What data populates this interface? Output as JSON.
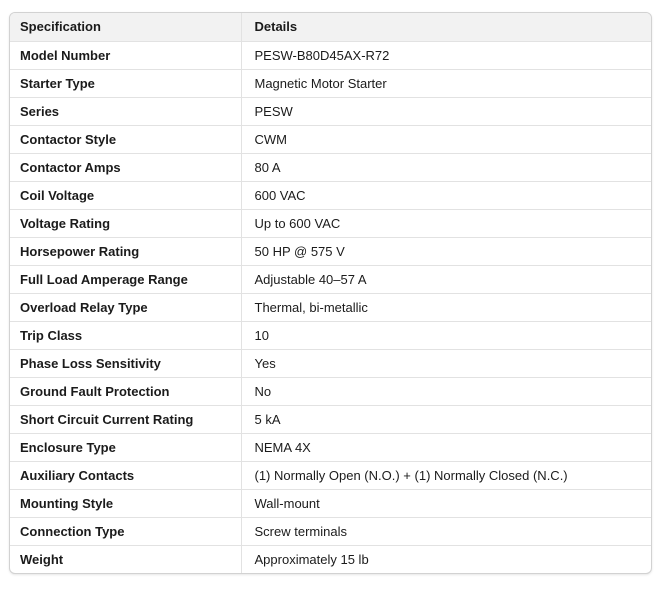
{
  "colors": {
    "header_background": "#f2f2f2",
    "outer_border": "#d2d2d2",
    "inner_border": "#e2e2e2",
    "text": "#1b1b1b",
    "row_background": "#ffffff"
  },
  "table": {
    "headers": [
      "Specification",
      "Details"
    ],
    "rows": [
      {
        "spec": "Model Number",
        "details": "PESW-B80D45AX-R72"
      },
      {
        "spec": "Starter Type",
        "details": "Magnetic Motor Starter"
      },
      {
        "spec": "Series",
        "details": "PESW"
      },
      {
        "spec": "Contactor Style",
        "details": "CWM"
      },
      {
        "spec": "Contactor Amps",
        "details": "80 A"
      },
      {
        "spec": "Coil Voltage",
        "details": "600 VAC"
      },
      {
        "spec": "Voltage Rating",
        "details": "Up to 600 VAC"
      },
      {
        "spec": "Horsepower Rating",
        "details": "50 HP @ 575 V"
      },
      {
        "spec": "Full Load Amperage Range",
        "details": "Adjustable 40–57 A"
      },
      {
        "spec": "Overload Relay Type",
        "details": "Thermal, bi-metallic"
      },
      {
        "spec": "Trip Class",
        "details": "10"
      },
      {
        "spec": "Phase Loss Sensitivity",
        "details": "Yes"
      },
      {
        "spec": "Ground Fault Protection",
        "details": "No"
      },
      {
        "spec": "Short Circuit Current Rating",
        "details": "5 kA"
      },
      {
        "spec": "Enclosure Type",
        "details": "NEMA 4X"
      },
      {
        "spec": "Auxiliary Contacts",
        "details": "(1) Normally Open (N.O.) + (1) Normally Closed (N.C.)"
      },
      {
        "spec": "Mounting Style",
        "details": "Wall-mount"
      },
      {
        "spec": "Connection Type",
        "details": "Screw terminals"
      },
      {
        "spec": "Weight",
        "details": "Approximately 15 lb"
      }
    ]
  }
}
